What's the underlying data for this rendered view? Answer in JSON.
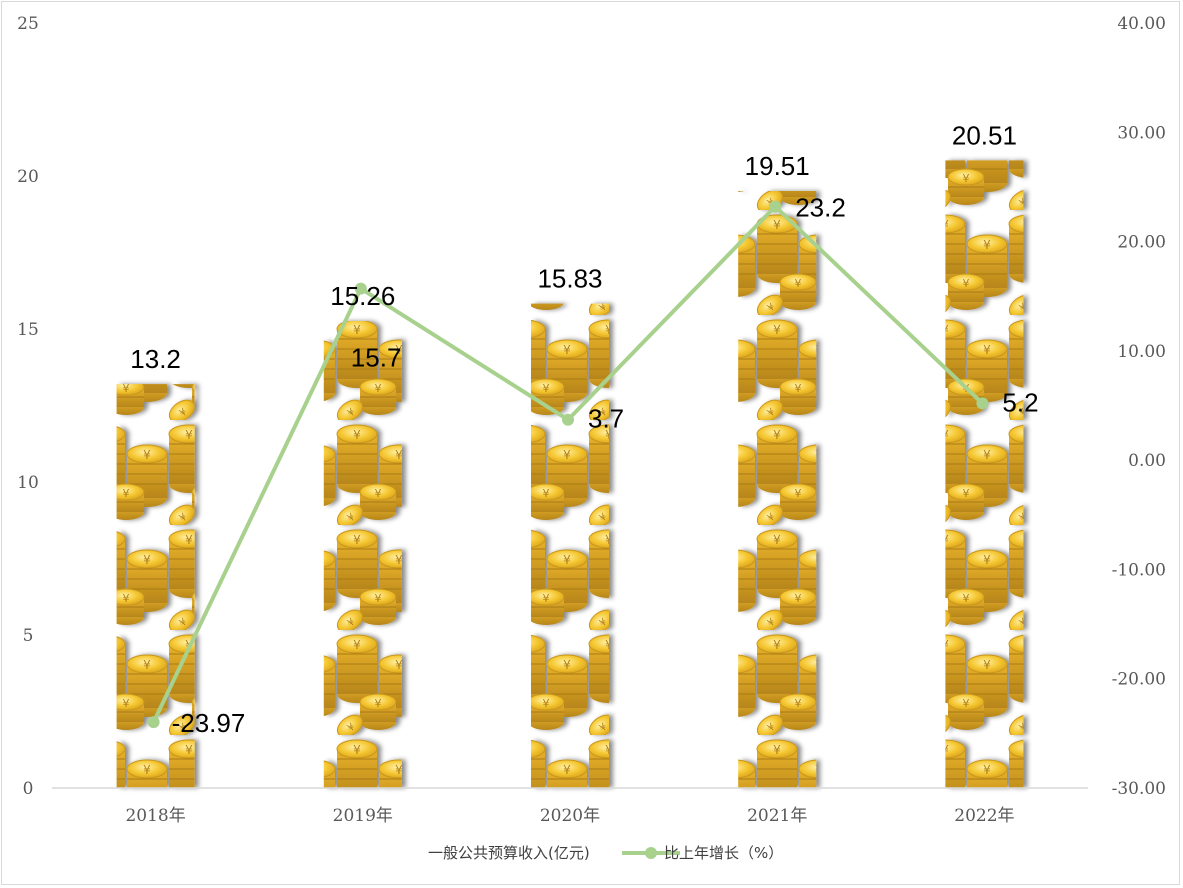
{
  "chart_data": {
    "type": "bar",
    "categories": [
      "2018年",
      "2019年",
      "2020年",
      "2021年",
      "2022年"
    ],
    "series": [
      {
        "name": "一般公共预算收入(亿元)",
        "type": "bar",
        "axis": "left",
        "values": [
          13.2,
          15.26,
          15.83,
          19.51,
          20.51
        ],
        "labels": [
          "13.2",
          "15.26",
          "15.83",
          "19.51",
          "20.51"
        ],
        "fill": "gold-coin-stack"
      },
      {
        "name": "比上年增长（%）",
        "type": "line",
        "axis": "right",
        "values": [
          -23.97,
          15.7,
          3.7,
          23.2,
          5.2
        ],
        "labels": [
          "-23.97",
          "15.7",
          "3.7",
          "23.2",
          "5.2"
        ],
        "color": "#a9d18e"
      }
    ],
    "y_left": {
      "range": [
        0,
        25
      ],
      "ticks": [
        "0",
        "5",
        "10",
        "15",
        "20",
        "25"
      ]
    },
    "y_right": {
      "range": [
        -30,
        40
      ],
      "ticks": [
        "-30.00",
        "-20.00",
        "-10.00",
        "0.00",
        "10.00",
        "20.00",
        "30.00",
        "40.00"
      ]
    },
    "grid": false,
    "legend": {
      "position": "bottom",
      "labels": [
        "一般公共预算收入(亿元)",
        "比上年增长（%）"
      ]
    },
    "colors": {
      "coin": "#f2c230",
      "coin_dark": "#c9961a",
      "axis": "#d9d9d9"
    }
  }
}
